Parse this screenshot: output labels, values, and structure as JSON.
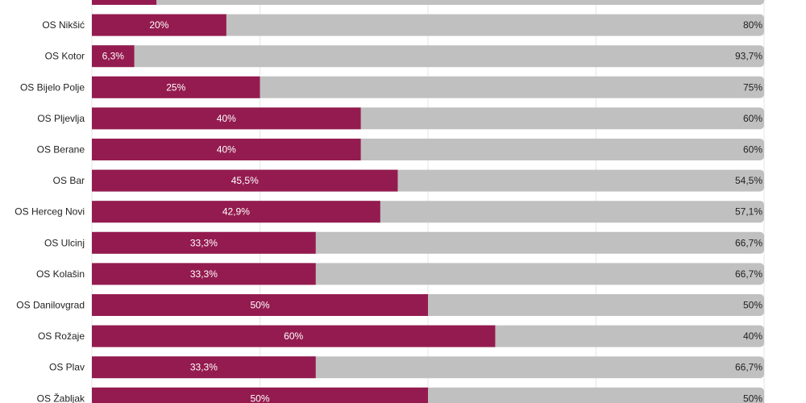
{
  "chart_data": {
    "type": "bar",
    "orientation": "horizontal",
    "stacked": true,
    "percent_stacked": true,
    "categories": [
      "",
      "OS Nikšić",
      "OS Kotor",
      "OS Bijelo Polje",
      "OS Pljevlja",
      "OS Berane",
      "OS Bar",
      "OS Herceg Novi",
      "OS Ulcinj",
      "OS Kolašin",
      "OS Danilovgrad",
      "OS Rožaje",
      "OS Plav",
      "OS Žabljak"
    ],
    "series": [
      {
        "color": "#941b4f",
        "values": [
          9.6,
          20,
          6.3,
          25,
          40,
          40,
          45.5,
          42.9,
          33.3,
          33.3,
          50,
          60,
          33.3,
          50
        ],
        "labels": [
          "",
          "20%",
          "6,3%",
          "25%",
          "40%",
          "40%",
          "45,5%",
          "42,9%",
          "33,3%",
          "33,3%",
          "50%",
          "60%",
          "33,3%",
          "50%"
        ]
      },
      {
        "color": "#c0c0c0",
        "values": [
          90.4,
          80,
          93.7,
          75,
          60,
          60,
          54.5,
          57.1,
          66.7,
          66.7,
          50,
          40,
          66.7,
          50
        ],
        "labels": [
          "",
          "80%",
          "93,7%",
          "75%",
          "60%",
          "60%",
          "54,5%",
          "57,1%",
          "66,7%",
          "66,7%",
          "50%",
          "40%",
          "66,7%",
          "50%"
        ]
      }
    ],
    "xlim": [
      0,
      100
    ],
    "grid": true,
    "legend": "none"
  }
}
